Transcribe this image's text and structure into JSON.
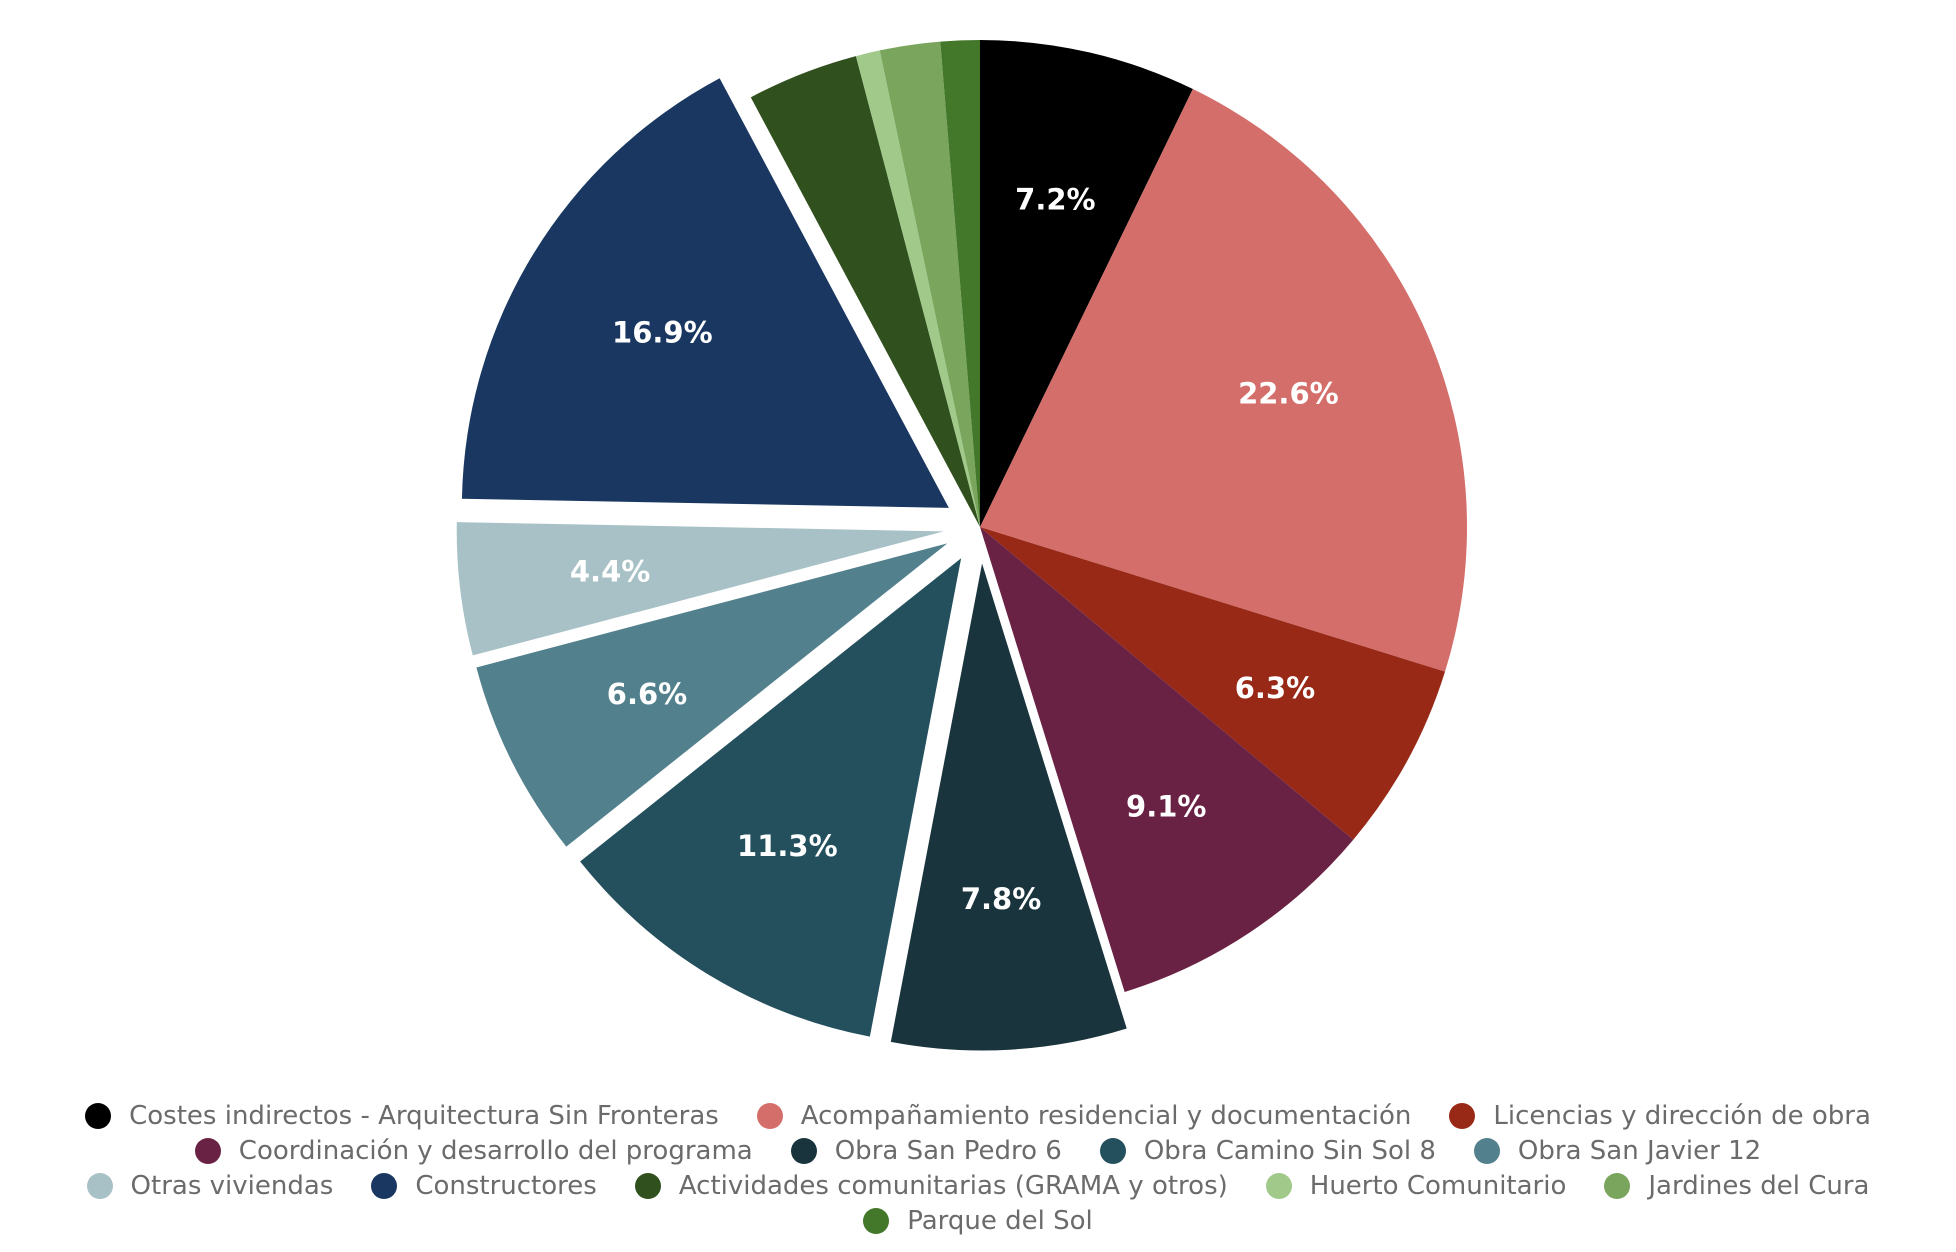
{
  "chart_data": {
    "type": "pie",
    "title": "",
    "legend_position": "bottom",
    "slices": [
      {
        "name": "Costes indirectos - Arquitectura Sin Fronteras",
        "value": 7.2,
        "label": "7.2%",
        "color": "#000000",
        "pulled": false
      },
      {
        "name": "Acompañamiento residencial y documentación",
        "value": 22.6,
        "label": "22.6%",
        "color": "#d46e6a",
        "pulled": false
      },
      {
        "name": "Licencias y dirección de obra",
        "value": 6.3,
        "label": "6.3%",
        "color": "#982917",
        "pulled": false
      },
      {
        "name": "Coordinación y desarrollo del programa",
        "value": 9.1,
        "label": "9.1%",
        "color": "#6a2244",
        "pulled": false
      },
      {
        "name": "Obra San Pedro 6",
        "value": 7.8,
        "label": "7.8%",
        "color": "#1a343d",
        "pulled": true
      },
      {
        "name": "Obra Camino Sin Sol 8",
        "value": 11.3,
        "label": "11.3%",
        "color": "#24505e",
        "pulled": true
      },
      {
        "name": "Obra San Javier 12",
        "value": 6.6,
        "label": "6.6%",
        "color": "#52808c",
        "pulled": true
      },
      {
        "name": "Otras viviendas",
        "value": 4.4,
        "label": "4.4%",
        "color": "#a8c1c6",
        "pulled": true
      },
      {
        "name": "Constructores",
        "value": 16.9,
        "label": "16.9%",
        "color": "#193760",
        "pulled": true
      },
      {
        "name": "Actividades comunitarias (GRAMA y otros)",
        "value": 3.7,
        "label": "",
        "color": "#30501e",
        "pulled": false
      },
      {
        "name": "Huerto Comunitario",
        "value": 0.8,
        "label": "",
        "color": "#a0c98a",
        "pulled": false
      },
      {
        "name": "Jardines del Cura",
        "value": 2.0,
        "label": "",
        "color": "#79a65c",
        "pulled": false
      },
      {
        "name": "Parque del Sol",
        "value": 1.3,
        "label": "",
        "color": "#43772a",
        "pulled": false
      }
    ]
  }
}
